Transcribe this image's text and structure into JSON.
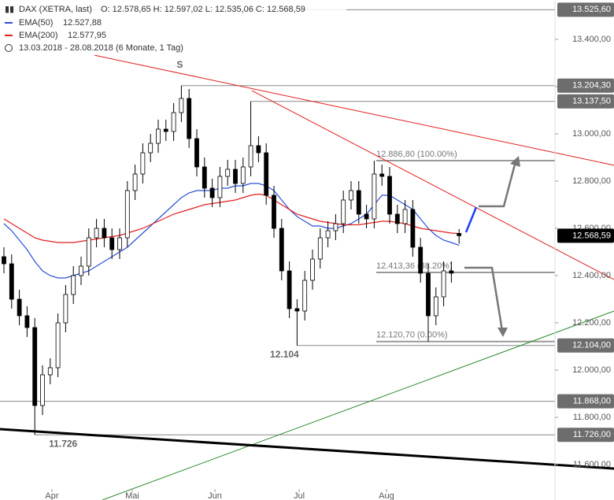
{
  "chart_data": {
    "type": "candlestick",
    "header": {
      "symbol": "DAX (XETRA, last)",
      "ohlc": "O: 12.578,65  H: 12.597,02  L: 12.535,06  C: 12.568,59",
      "range": "13.03.2018 - 28.08.2018  (6 Monate, 1 Tag)"
    },
    "open": [
      12480,
      12450,
      12300,
      12230,
      12180,
      11850,
      11980,
      12010,
      12200,
      12320,
      12400,
      12440,
      12560,
      12600,
      12560,
      12510,
      12560,
      12760,
      12830,
      12920,
      12960,
      13020,
      13010,
      13090,
      13150,
      12980,
      12860,
      12770,
      12730,
      12820,
      12850,
      12790,
      12860,
      12950,
      12920,
      12740,
      12600,
      12420,
      12260,
      12250,
      12380,
      12470,
      12560,
      12590,
      12620,
      12720,
      12760,
      12660,
      12640,
      12830,
      12820,
      12660,
      12620,
      12680,
      12520,
      12410,
      12230,
      12310,
      12420,
      12578.65
    ],
    "high": [
      12520,
      12490,
      12340,
      12270,
      12220,
      12020,
      12050,
      12240,
      12360,
      12440,
      12480,
      12600,
      12640,
      12640,
      12600,
      12600,
      12800,
      12870,
      12960,
      13000,
      13060,
      13060,
      13130,
      13204.3,
      13190,
      13020,
      12900,
      12810,
      12860,
      12890,
      12890,
      12900,
      13137.5,
      12990,
      12960,
      12780,
      12640,
      12460,
      12300,
      12420,
      12510,
      12600,
      12630,
      12660,
      12760,
      12800,
      12800,
      12700,
      12886.8,
      12870,
      12860,
      12700,
      12720,
      12720,
      12560,
      12450,
      12350,
      12460,
      12460,
      12597.02
    ],
    "low": [
      12410,
      12260,
      12190,
      12140,
      11726,
      11810,
      11940,
      11970,
      12160,
      12280,
      12360,
      12400,
      12520,
      12520,
      12470,
      12470,
      12520,
      12720,
      12790,
      12880,
      12920,
      12970,
      12970,
      13050,
      12940,
      12820,
      12730,
      12690,
      12690,
      12780,
      12750,
      12750,
      12820,
      12880,
      12700,
      12560,
      12380,
      12220,
      12104,
      12210,
      12340,
      12430,
      12520,
      12550,
      12580,
      12680,
      12620,
      12600,
      12600,
      12780,
      12620,
      12580,
      12580,
      12480,
      12370,
      12120.7,
      12190,
      12270,
      12370,
      12535.06
    ],
    "close": [
      12450,
      12300,
      12230,
      12180,
      11850,
      11980,
      12010,
      12200,
      12320,
      12400,
      12440,
      12560,
      12600,
      12560,
      12510,
      12560,
      12760,
      12830,
      12920,
      12960,
      13020,
      13010,
      13090,
      13150,
      12980,
      12860,
      12770,
      12730,
      12820,
      12850,
      12790,
      12860,
      12950,
      12920,
      12740,
      12600,
      12420,
      12260,
      12250,
      12380,
      12470,
      12560,
      12590,
      12620,
      12720,
      12760,
      12660,
      12640,
      12830,
      12820,
      12660,
      12620,
      12680,
      12520,
      12410,
      12230,
      12310,
      12420,
      12410,
      12568.59
    ],
    "series": [
      {
        "name": "EMA(50)",
        "color": "#2b4fd6",
        "value_label": "12.527,88",
        "values": [
          12620,
          12590,
          12550,
          12510,
          12460,
          12420,
          12400,
          12390,
          12390,
          12400,
          12410,
          12420,
          12440,
          12460,
          12480,
          12500,
          12520,
          12550,
          12580,
          12610,
          12640,
          12670,
          12700,
          12730,
          12750,
          12760,
          12760,
          12760,
          12770,
          12770,
          12780,
          12780,
          12790,
          12790,
          12780,
          12760,
          12720,
          12680,
          12650,
          12630,
          12610,
          12610,
          12600,
          12600,
          12610,
          12620,
          12640,
          12660,
          12700,
          12740,
          12740,
          12720,
          12700,
          12680,
          12640,
          12600,
          12570,
          12550,
          12540,
          12527.88
        ]
      },
      {
        "name": "EMA(200)",
        "color": "#e0201e",
        "value_label": "12.577,95",
        "values": [
          12640,
          12620,
          12600,
          12580,
          12560,
          12550,
          12545,
          12540,
          12540,
          12540,
          12545,
          12550,
          12555,
          12560,
          12565,
          12570,
          12580,
          12590,
          12600,
          12615,
          12630,
          12645,
          12660,
          12670,
          12680,
          12690,
          12700,
          12705,
          12710,
          12715,
          12720,
          12730,
          12740,
          12745,
          12740,
          12720,
          12700,
          12680,
          12660,
          12650,
          12640,
          12630,
          12625,
          12620,
          12615,
          12615,
          12615,
          12620,
          12625,
          12630,
          12630,
          12625,
          12620,
          12610,
          12600,
          12595,
          12590,
          12585,
          12580,
          12577.95
        ]
      }
    ],
    "xlim": [
      -0.51,
      71.43
    ],
    "ylim": [
      11450,
      13566.67
    ],
    "xticks": [
      {
        "value": 6.22,
        "label": "Apr"
      },
      {
        "value": 16.63,
        "label": "Mai"
      },
      {
        "value": 27.35,
        "label": "Jun"
      },
      {
        "value": 38.27,
        "label": "Jul"
      },
      {
        "value": 49.59,
        "label": "Aug"
      }
    ],
    "yticks": [
      {
        "value": 13400,
        "label": "13.400,00"
      },
      {
        "value": 13200,
        "label": "13.200,00"
      },
      {
        "value": 13000,
        "label": "13.000,00"
      },
      {
        "value": 12800,
        "label": "12.800,00"
      },
      {
        "value": 12600,
        "label": "12.600,00"
      },
      {
        "value": 12400,
        "label": "12.400,00"
      },
      {
        "value": 12200,
        "label": "12.200,00"
      },
      {
        "value": 12000,
        "label": "12.000,00"
      },
      {
        "value": 11800,
        "label": "11.800,00"
      },
      {
        "value": 11600,
        "label": "11.600,00"
      }
    ],
    "levels": [
      {
        "value": 13525.6,
        "label": "13.525,60"
      },
      {
        "value": 13204.3,
        "label": "13.204,30"
      },
      {
        "value": 13137.5,
        "label": "13.137,50"
      },
      {
        "value": 12104,
        "label": "12.104,00"
      },
      {
        "value": 11868,
        "label": "11.868,00"
      },
      {
        "value": 11726,
        "label": "11.726,00"
      }
    ],
    "last_price": {
      "value": 12568.59,
      "label": "12.568,59"
    },
    "fibonacci": [
      {
        "value": 12886.8,
        "label": "12.886,80 (100.00%)"
      },
      {
        "value": 12413.36,
        "label": "12.413,36 (38.20%)"
      },
      {
        "value": 12120.7,
        "label": "12.120,70 (0.00%)"
      }
    ],
    "annotations": [
      {
        "x": 23,
        "value": 13204.3,
        "label": "S"
      },
      {
        "x": 38,
        "value": 12104,
        "label": "12.104"
      },
      {
        "x": 4,
        "value": 11726,
        "label": "11.726"
      }
    ],
    "trendlines": [
      {
        "color": "#e0201e",
        "x": [
          11.73,
          79.1
        ],
        "y": [
          13333,
          12867
        ]
      },
      {
        "color": "#e0201e",
        "x": [
          32.14,
          79.1
        ],
        "y": [
          13183,
          12383
        ]
      },
      {
        "color": "#2a8a2a",
        "x": [
          12.76,
          79.1
        ],
        "y": [
          11450,
          12250
        ]
      },
      {
        "color": "#000000",
        "x": [
          -0.51,
          79.1
        ],
        "y": [
          11750,
          11583
        ]
      }
    ]
  }
}
